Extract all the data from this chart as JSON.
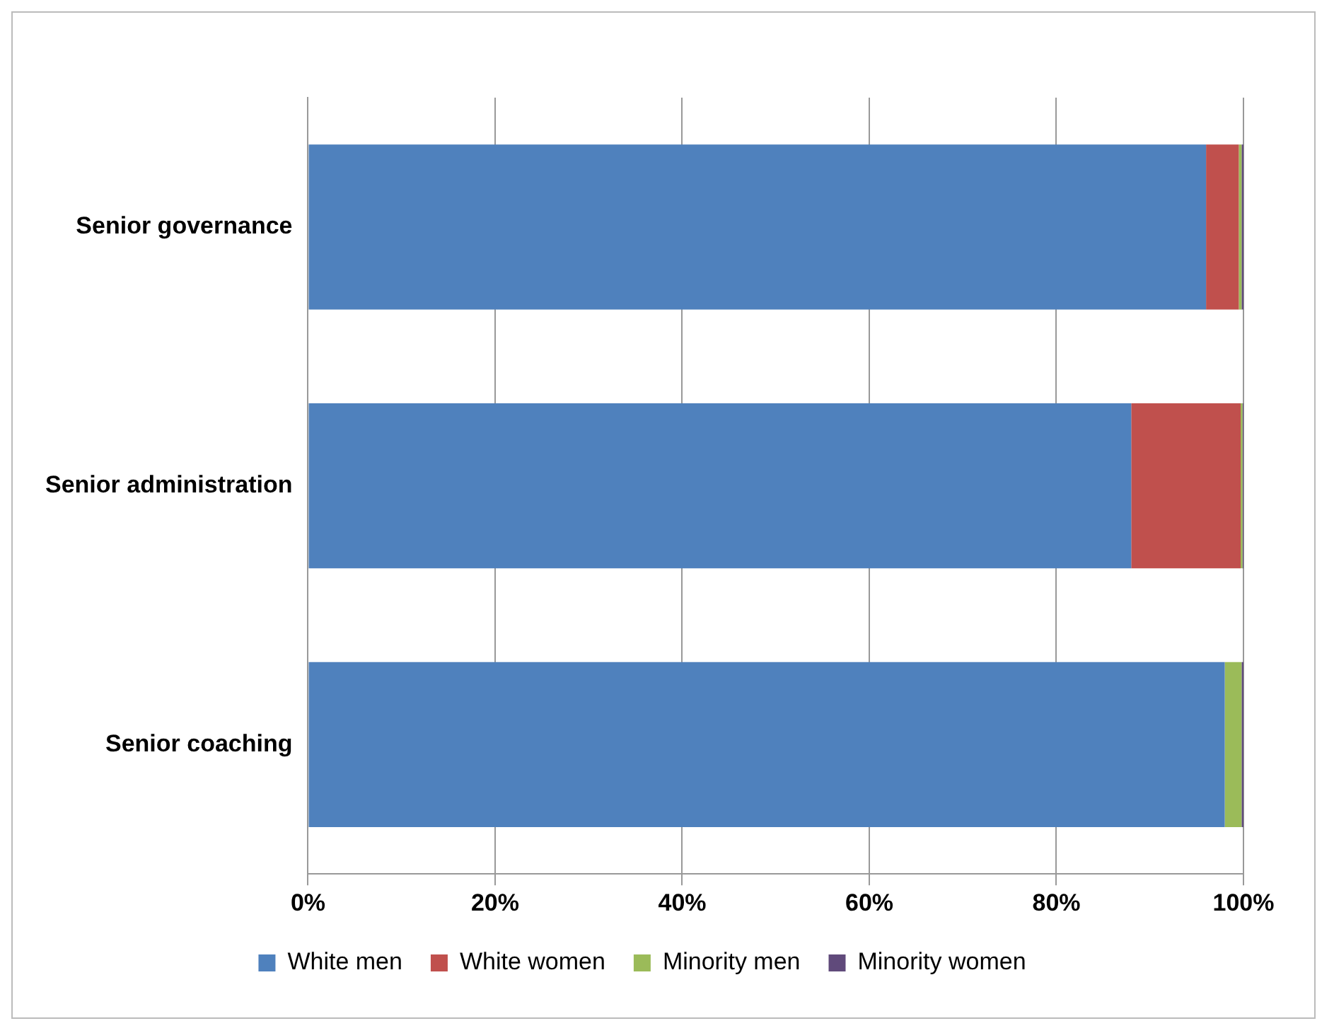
{
  "chart_data": {
    "type": "bar",
    "orientation": "horizontal",
    "stacked": true,
    "categories": [
      "Senior governance",
      "Senior administration",
      "Senior coaching"
    ],
    "series": [
      {
        "name": "White men",
        "color": "#4f81bd",
        "values": [
          96,
          88,
          98
        ]
      },
      {
        "name": "White women",
        "color": "#c0504d",
        "values": [
          3.5,
          11.7,
          0
        ]
      },
      {
        "name": "Minority men",
        "color": "#9bbb59",
        "values": [
          0.3,
          0.2,
          1.8
        ]
      },
      {
        "name": "Minority women",
        "color": "#604a7b",
        "values": [
          0.2,
          0.1,
          0.2
        ]
      }
    ],
    "xlim": [
      0,
      100
    ],
    "xticks": [
      {
        "value": 0,
        "label": "0%"
      },
      {
        "value": 20,
        "label": "20%"
      },
      {
        "value": 40,
        "label": "40%"
      },
      {
        "value": 60,
        "label": "60%"
      },
      {
        "value": 80,
        "label": "80%"
      },
      {
        "value": 100,
        "label": "100%"
      }
    ],
    "grid": "x",
    "legend": "bottom"
  }
}
